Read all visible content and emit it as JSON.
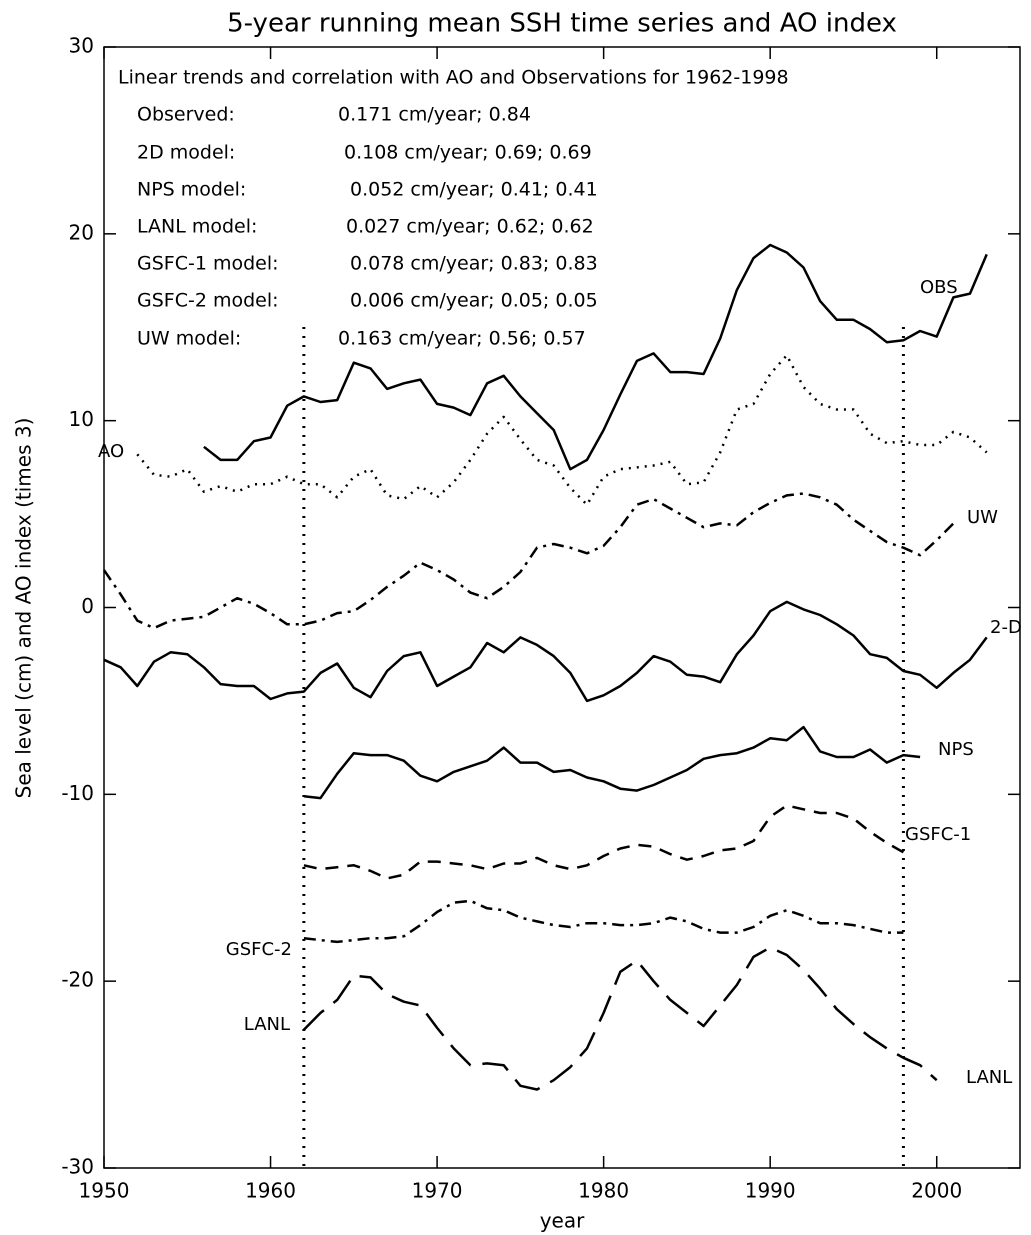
{
  "chart_data": {
    "type": "line",
    "title": "5-year running mean SSH time series and AO index",
    "xlabel": "year",
    "ylabel": "Sea level (cm) and AO index (times 3)",
    "xlim": [
      1950,
      2005
    ],
    "ylim": [
      -30,
      30
    ],
    "xticks": [
      1950,
      1960,
      1970,
      1980,
      1990,
      2000
    ],
    "yticks": [
      -30,
      -20,
      -10,
      0,
      10,
      20,
      30
    ],
    "grid": false,
    "vlines": [
      1962,
      1998
    ],
    "trend_header": "Linear trends and correlation with AO and Observations for 1962-1998",
    "trends": [
      {
        "label": "Observed:",
        "text": "0.171 cm/year; 0.84"
      },
      {
        "label": "2D model:",
        "text": "0.108 cm/year; 0.69; 0.69"
      },
      {
        "label": "NPS model:",
        "text": "0.052 cm/year; 0.41; 0.41"
      },
      {
        "label": "LANL model:",
        "text": "0.027 cm/year; 0.62; 0.62"
      },
      {
        "label": "GSFC-1 model:",
        "text": "0.078 cm/year; 0.83; 0.83"
      },
      {
        "label": "GSFC-2 model:",
        "text": "0.006 cm/year; 0.05; 0.05"
      },
      {
        "label": "UW  model:",
        "text": "0.163 cm/year; 0.56; 0.57"
      }
    ],
    "series": [
      {
        "name": "OBS",
        "color": "#000000",
        "dash": "solid",
        "x": [
          1956,
          1957,
          1958,
          1959,
          1960,
          1961,
          1962,
          1963,
          1964,
          1965,
          1966,
          1967,
          1968,
          1969,
          1970,
          1971,
          1972,
          1973,
          1974,
          1975,
          1976,
          1977,
          1978,
          1979,
          1980,
          1981,
          1982,
          1983,
          1984,
          1985,
          1986,
          1987,
          1988,
          1989,
          1990,
          1991,
          1992,
          1993,
          1994,
          1995,
          1996,
          1997,
          1998,
          1999,
          2000,
          2001,
          2002,
          2003
        ],
        "values": [
          8.6,
          7.9,
          7.9,
          8.9,
          9.1,
          10.8,
          11.3,
          11.0,
          11.1,
          13.1,
          12.8,
          11.7,
          12.0,
          12.2,
          10.9,
          10.7,
          10.3,
          12.0,
          12.4,
          11.3,
          10.4,
          9.5,
          7.4,
          7.9,
          9.5,
          11.4,
          13.2,
          13.6,
          12.6,
          12.6,
          12.5,
          14.4,
          17.0,
          18.7,
          19.4,
          19.0,
          18.2,
          16.4,
          15.4,
          15.4,
          14.9,
          14.2,
          14.3,
          14.8,
          14.5,
          16.6,
          16.8,
          18.9
        ]
      },
      {
        "name": "AO",
        "color": "#000000",
        "dash": "dotted",
        "x": [
          1952,
          1953,
          1954,
          1955,
          1956,
          1957,
          1958,
          1959,
          1960,
          1961,
          1962,
          1963,
          1964,
          1965,
          1966,
          1967,
          1968,
          1969,
          1970,
          1971,
          1972,
          1973,
          1974,
          1975,
          1976,
          1977,
          1978,
          1979,
          1980,
          1981,
          1982,
          1983,
          1984,
          1985,
          1986,
          1987,
          1988,
          1989,
          1990,
          1991,
          1992,
          1993,
          1994,
          1995,
          1996,
          1997,
          1998,
          1999,
          2000,
          2001,
          2002,
          2003
        ],
        "values": [
          8.2,
          7.1,
          7.0,
          7.4,
          6.2,
          6.5,
          6.2,
          6.6,
          6.6,
          7.0,
          6.6,
          6.6,
          5.9,
          7.0,
          7.4,
          6.0,
          5.8,
          6.5,
          5.9,
          6.7,
          7.9,
          9.3,
          10.2,
          9.0,
          7.9,
          7.6,
          6.4,
          5.5,
          7.0,
          7.4,
          7.5,
          7.6,
          7.8,
          6.6,
          6.7,
          8.3,
          10.6,
          10.9,
          12.5,
          13.5,
          11.8,
          10.9,
          10.6,
          10.6,
          9.3,
          8.8,
          8.9,
          8.7,
          8.7,
          9.4,
          9.1,
          8.3
        ]
      },
      {
        "name": "UW",
        "color": "#000000",
        "dash": "dashdot",
        "x": [
          1950,
          1951,
          1952,
          1953,
          1954,
          1955,
          1956,
          1957,
          1958,
          1959,
          1960,
          1961,
          1962,
          1963,
          1964,
          1965,
          1966,
          1967,
          1968,
          1969,
          1970,
          1971,
          1972,
          1973,
          1974,
          1975,
          1976,
          1977,
          1978,
          1979,
          1980,
          1981,
          1982,
          1983,
          1984,
          1985,
          1986,
          1987,
          1988,
          1989,
          1990,
          1991,
          1992,
          1993,
          1994,
          1995,
          1996,
          1997,
          1998,
          1999,
          2000,
          2001
        ],
        "values": [
          2.0,
          0.7,
          -0.7,
          -1.1,
          -0.7,
          -0.6,
          -0.5,
          0,
          0.5,
          0.2,
          -0.3,
          -0.9,
          -0.9,
          -0.7,
          -0.3,
          -0.2,
          0.4,
          1.1,
          1.7,
          2.4,
          2.0,
          1.5,
          0.8,
          0.5,
          1.1,
          1.9,
          3.2,
          3.4,
          3.2,
          2.9,
          3.3,
          4.3,
          5.5,
          5.8,
          5.3,
          4.8,
          4.3,
          4.5,
          4.4,
          5.1,
          5.6,
          6.0,
          6.1,
          5.9,
          5.5,
          4.7,
          4.1,
          3.5,
          3.2,
          2.8,
          3.6,
          4.5
        ]
      },
      {
        "name": "2-D",
        "color": "#000000",
        "dash": "solid",
        "x": [
          1950,
          1951,
          1952,
          1953,
          1954,
          1955,
          1956,
          1957,
          1958,
          1959,
          1960,
          1961,
          1962,
          1963,
          1964,
          1965,
          1966,
          1967,
          1968,
          1969,
          1970,
          1971,
          1972,
          1973,
          1974,
          1975,
          1976,
          1977,
          1978,
          1979,
          1980,
          1981,
          1982,
          1983,
          1984,
          1985,
          1986,
          1987,
          1988,
          1989,
          1990,
          1991,
          1992,
          1993,
          1994,
          1995,
          1996,
          1997,
          1998,
          1999,
          2000,
          2001,
          2002,
          2003
        ],
        "values": [
          -2.8,
          -3.2,
          -4.2,
          -2.9,
          -2.4,
          -2.5,
          -3.2,
          -4.1,
          -4.2,
          -4.2,
          -4.9,
          -4.6,
          -4.5,
          -3.5,
          -3.0,
          -4.3,
          -4.8,
          -3.4,
          -2.6,
          -2.4,
          -4.2,
          -3.7,
          -3.2,
          -1.9,
          -2.4,
          -1.6,
          -2.0,
          -2.6,
          -3.5,
          -5.0,
          -4.7,
          -4.2,
          -3.5,
          -2.6,
          -2.9,
          -3.6,
          -3.7,
          -4.0,
          -2.5,
          -1.5,
          -0.2,
          0.3,
          -0.1,
          -0.4,
          -0.9,
          -1.5,
          -2.5,
          -2.7,
          -3.4,
          -3.6,
          -4.3,
          -3.5,
          -2.8,
          -1.6
        ]
      },
      {
        "name": "NPS",
        "color": "#000000",
        "dash": "solid",
        "x": [
          1962,
          1963,
          1964,
          1965,
          1966,
          1967,
          1968,
          1969,
          1970,
          1971,
          1972,
          1973,
          1974,
          1975,
          1976,
          1977,
          1978,
          1979,
          1980,
          1981,
          1982,
          1983,
          1984,
          1985,
          1986,
          1987,
          1988,
          1989,
          1990,
          1991,
          1992,
          1993,
          1994,
          1995,
          1996,
          1997,
          1998,
          1999
        ],
        "values": [
          -10.1,
          -10.2,
          -8.9,
          -7.8,
          -7.9,
          -7.9,
          -8.2,
          -9.0,
          -9.3,
          -8.8,
          -8.5,
          -8.2,
          -7.5,
          -8.3,
          -8.3,
          -8.8,
          -8.7,
          -9.1,
          -9.3,
          -9.7,
          -9.8,
          -9.5,
          -9.1,
          -8.7,
          -8.1,
          -7.9,
          -7.8,
          -7.5,
          -7.0,
          -7.1,
          -6.4,
          -7.7,
          -8.0,
          -8.0,
          -7.6,
          -8.3,
          -7.9,
          -8.0
        ]
      },
      {
        "name": "GSFC-1",
        "color": "#000000",
        "dash": "dashed",
        "x": [
          1962,
          1963,
          1964,
          1965,
          1966,
          1967,
          1968,
          1969,
          1970,
          1971,
          1972,
          1973,
          1974,
          1975,
          1976,
          1977,
          1978,
          1979,
          1980,
          1981,
          1982,
          1983,
          1984,
          1985,
          1986,
          1987,
          1988,
          1989,
          1990,
          1991,
          1992,
          1993,
          1994,
          1995,
          1996,
          1997,
          1998
        ],
        "values": [
          -13.8,
          -14.0,
          -13.9,
          -13.8,
          -14.1,
          -14.5,
          -14.3,
          -13.6,
          -13.6,
          -13.7,
          -13.8,
          -14.0,
          -13.7,
          -13.7,
          -13.4,
          -13.8,
          -14.0,
          -13.8,
          -13.3,
          -12.9,
          -12.7,
          -12.8,
          -13.2,
          -13.5,
          -13.3,
          -13.0,
          -12.9,
          -12.5,
          -11.2,
          -10.6,
          -10.8,
          -11.0,
          -11.0,
          -11.3,
          -12.0,
          -12.6,
          -13.1
        ]
      },
      {
        "name": "GSFC-2",
        "color": "#000000",
        "dash": "dashdot",
        "x": [
          1962,
          1963,
          1964,
          1965,
          1966,
          1967,
          1968,
          1969,
          1970,
          1971,
          1972,
          1973,
          1974,
          1975,
          1976,
          1977,
          1978,
          1979,
          1980,
          1981,
          1982,
          1983,
          1984,
          1985,
          1986,
          1987,
          1988,
          1989,
          1990,
          1991,
          1992,
          1993,
          1994,
          1995,
          1996,
          1997,
          1998
        ],
        "values": [
          -17.7,
          -17.8,
          -17.9,
          -17.8,
          -17.7,
          -17.7,
          -17.6,
          -17.0,
          -16.3,
          -15.8,
          -15.7,
          -16.1,
          -16.2,
          -16.6,
          -16.8,
          -17.0,
          -17.1,
          -16.9,
          -16.9,
          -17.0,
          -17.0,
          -16.9,
          -16.6,
          -16.8,
          -17.2,
          -17.4,
          -17.4,
          -17.1,
          -16.5,
          -16.2,
          -16.5,
          -16.9,
          -16.9,
          -17.0,
          -17.2,
          -17.4,
          -17.4
        ]
      },
      {
        "name": "LANL",
        "color": "#000000",
        "dash": "longdash",
        "x": [
          1962,
          1963,
          1964,
          1965,
          1966,
          1967,
          1968,
          1969,
          1970,
          1971,
          1972,
          1973,
          1974,
          1975,
          1976,
          1977,
          1978,
          1979,
          1980,
          1981,
          1982,
          1983,
          1984,
          1985,
          1986,
          1987,
          1988,
          1989,
          1990,
          1991,
          1992,
          1993,
          1994,
          1995,
          1996,
          1997,
          1998,
          1999,
          2000
        ],
        "values": [
          -22.6,
          -21.7,
          -21.0,
          -19.7,
          -19.8,
          -20.7,
          -21.1,
          -21.3,
          -22.5,
          -23.6,
          -24.5,
          -24.4,
          -24.5,
          -25.6,
          -25.8,
          -25.3,
          -24.6,
          -23.6,
          -21.7,
          -19.5,
          -18.9,
          -20.0,
          -21.0,
          -21.7,
          -22.4,
          -21.3,
          -20.2,
          -18.7,
          -18.2,
          -18.6,
          -19.4,
          -20.4,
          -21.5,
          -22.3,
          -23.0,
          -23.6,
          -24.1,
          -24.5,
          -25.3
        ]
      }
    ]
  }
}
